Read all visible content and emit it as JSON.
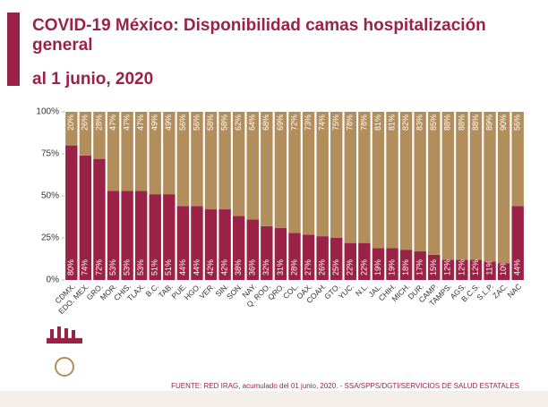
{
  "chart_data": {
    "type": "stacked-bar",
    "title": "COVID-19 México: Disponibilidad camas hospitalización general",
    "subtitle": "al 1 junio, 2020",
    "source": "FUENTE: RED IRAG, acumulado del 01  junio, 2020. -  SSA/SPPS/DGTI/SERVICIOS DE SALUD ESTATALES",
    "categories": [
      "CDMX.",
      "EDO. MEX.",
      "GRO.",
      "MOR.",
      "CHIS.",
      "TLAX.",
      "B.C.",
      "TAB.",
      "PUE.",
      "HGO.",
      "VER.",
      "SIN.",
      "SON.",
      "NAY.",
      "Q. ROO.",
      "QRO.",
      "COL.",
      "OAX.",
      "COAH.",
      "GTO.",
      "YUC.",
      "N.L.",
      "JAL.",
      "CHIH.",
      "MICH.",
      "DUR.",
      "CAMP.",
      "TAMPS.",
      "AGS.",
      "B.C.S.",
      "S.L.P.",
      "ZAC.",
      "NAC"
    ],
    "series": [
      {
        "color": "#9b2247",
        "values": [
          80,
          74,
          72,
          53,
          53,
          53,
          51,
          51,
          44,
          44,
          42,
          42,
          38,
          36,
          32,
          31,
          28,
          27,
          26,
          25,
          22,
          22,
          19,
          19,
          18,
          17,
          15,
          12,
          12,
          12,
          11,
          10,
          44
        ],
        "value_labels": [
          "80%",
          "74%",
          "72%",
          "53%",
          "53%",
          "53%",
          "51%",
          "51%",
          "44%",
          "44%",
          "42%",
          "42%",
          "38%",
          "36%",
          "32%",
          "31%",
          "28%",
          "27%",
          "26%",
          "25%",
          "22%",
          "22%",
          "19%",
          "19%",
          "18%",
          "17%",
          "15%",
          "12%",
          "12%",
          "12%",
          "11%",
          "10%",
          "44%"
        ]
      },
      {
        "color": "#b38e5d",
        "values": [
          20,
          26,
          28,
          47,
          47,
          47,
          49,
          49,
          56,
          56,
          58,
          58,
          62,
          64,
          68,
          69,
          72,
          73,
          74,
          75,
          78,
          78,
          81,
          81,
          82,
          83,
          85,
          88,
          88,
          88,
          89,
          90,
          56
        ],
        "value_labels": [
          "20%",
          "26%",
          "28%",
          "47%",
          "47%",
          "47%",
          "49%",
          "49%",
          "56%",
          "56%",
          "58%",
          "58%",
          "62%",
          "64%",
          "68%",
          "69%",
          "72%",
          "73%",
          "74%",
          "75%",
          "78%",
          "78%",
          "81%",
          "81%",
          "82%",
          "83%",
          "85%",
          "88%",
          "88%",
          "88%",
          "89%",
          "90%",
          "56%"
        ]
      }
    ],
    "ylim": [
      0,
      100
    ],
    "yticks": [
      {
        "value": 0,
        "label": "0%"
      },
      {
        "value": 25,
        "label": "25%"
      },
      {
        "value": 50,
        "label": "50%"
      },
      {
        "value": 75,
        "label": "75%"
      },
      {
        "value": 100,
        "label": "100%"
      }
    ],
    "grid": false
  }
}
